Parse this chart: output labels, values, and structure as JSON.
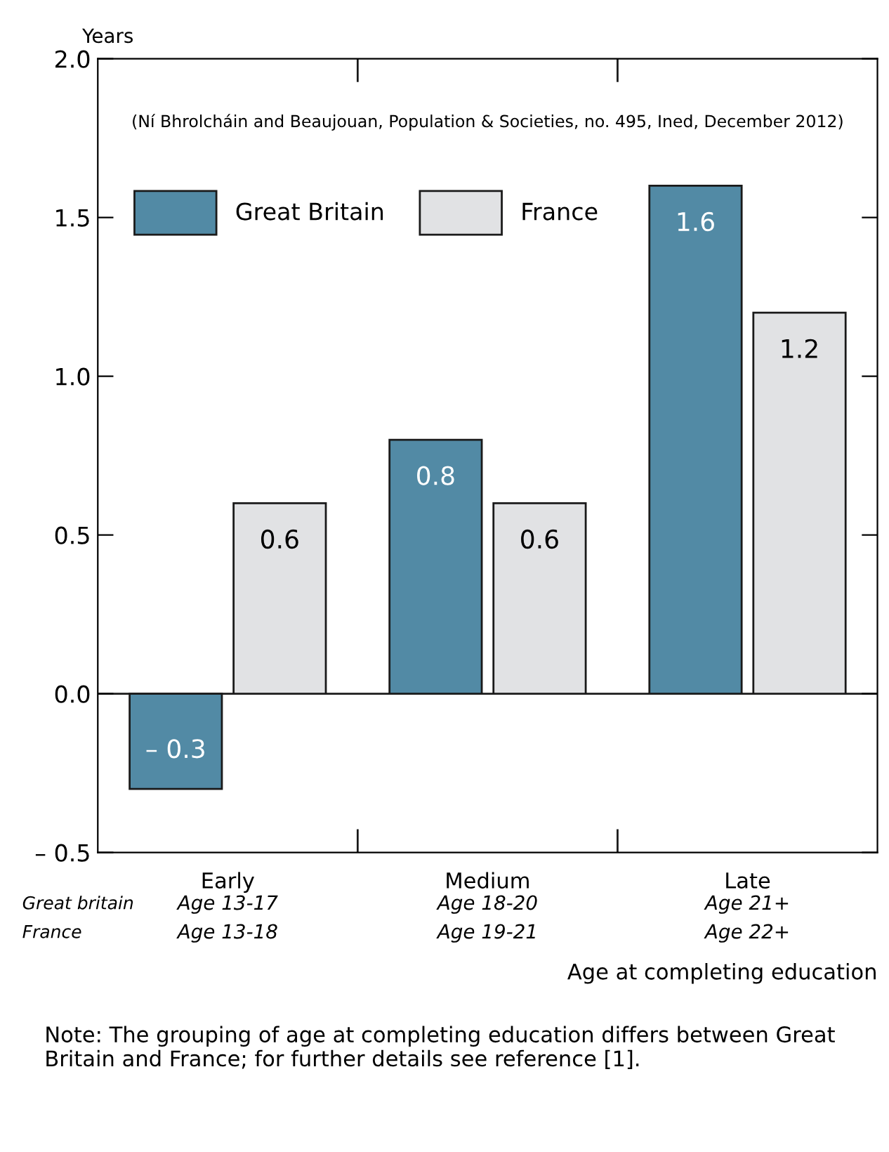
{
  "chart_data": {
    "type": "bar",
    "categories": [
      "Early",
      "Medium",
      "Late"
    ],
    "series": [
      {
        "name": "Great Britain",
        "color": "#528aa5",
        "values": [
          -0.3,
          0.8,
          1.6
        ],
        "value_labels": [
          "– 0.3",
          "0.8",
          "1.6"
        ]
      },
      {
        "name": "France",
        "color": "#e1e2e4",
        "values": [
          0.6,
          0.6,
          1.2
        ],
        "value_labels": [
          "0.6",
          "0.6",
          "1.2"
        ]
      }
    ],
    "ylabel": "Years",
    "ylim": [
      -0.5,
      2.0
    ],
    "yticks": [
      {
        "value": -0.5,
        "label": "– 0.5"
      },
      {
        "value": 0,
        "label": "0.0"
      },
      0.5,
      {
        "value": 1,
        "label": "1.0"
      },
      1.5,
      {
        "value": 2,
        "label": "2.0"
      }
    ],
    "ref_lines": [
      {
        "axis": "y",
        "value": 0,
        "color": "#1a1a1a"
      }
    ],
    "legend": "top left",
    "grid": false,
    "annotations": [
      "(Ní Bhrolcháin and Beaujouan, Population & Societies, no. 495, Ined, December 2012)",
      "Great britain",
      "Age 13-17",
      "Age 18-20",
      "Age 21+",
      "France",
      "Age 13-18",
      "Age 19-21",
      "Age 22+",
      "Age at completing education",
      "Note: The grouping of age at completing education differs between Great Britain and France; for further details see reference [1]."
    ]
  }
}
